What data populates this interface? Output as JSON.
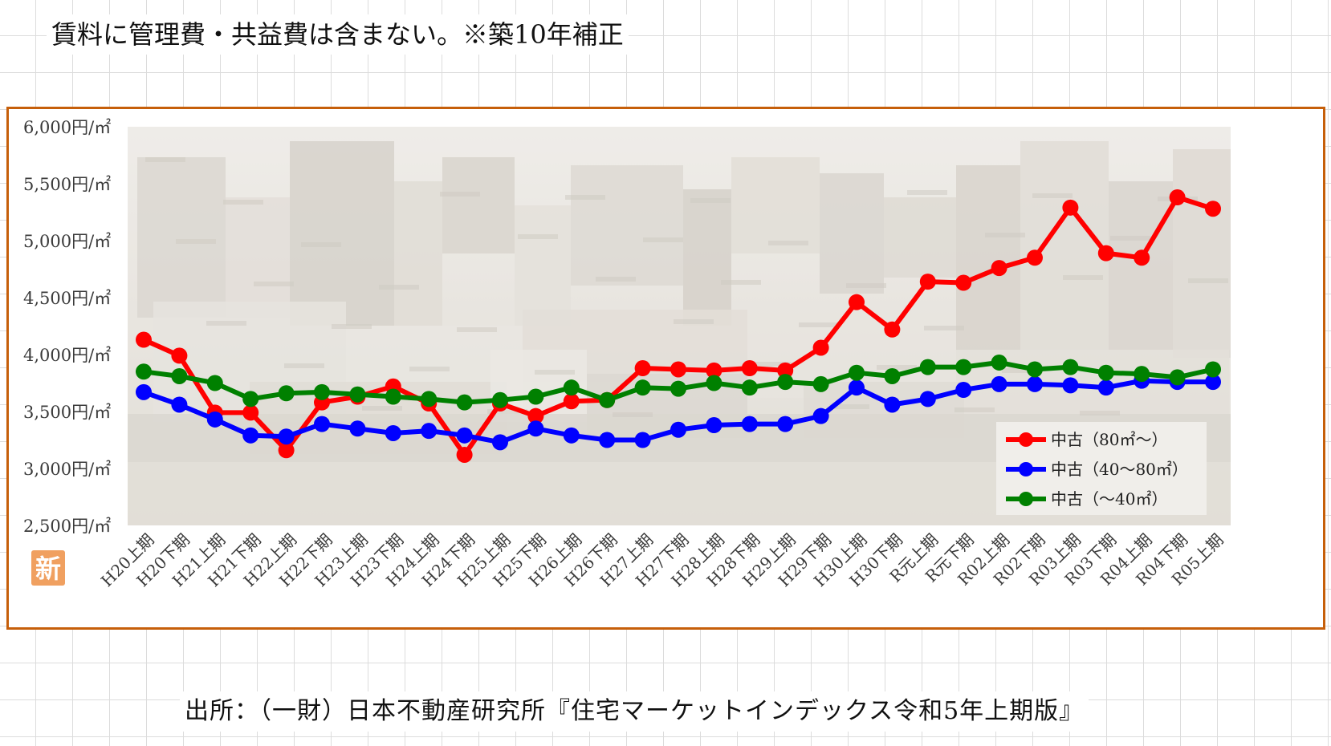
{
  "header": {
    "note": "賃料に管理費・共益費は含まない。※築10年補正"
  },
  "footer": {
    "source": "出所：（一財）日本不動産研究所『住宅マーケットインデックス令和5年上期版』"
  },
  "badge": {
    "label": "新",
    "color": "#f0a060"
  },
  "chart_data": {
    "type": "line",
    "title": "",
    "xlabel": "",
    "ylabel": "",
    "ylim": [
      2500,
      6000
    ],
    "y_ticks": [
      {
        "value": 6000,
        "label": "6,000円/㎡"
      },
      {
        "value": 5500,
        "label": "5,500円/㎡"
      },
      {
        "value": 5000,
        "label": "5,000円/㎡"
      },
      {
        "value": 4500,
        "label": "4,500円/㎡"
      },
      {
        "value": 4000,
        "label": "4,000円/㎡"
      },
      {
        "value": 3500,
        "label": "3,500円/㎡"
      },
      {
        "value": 3000,
        "label": "3,000円/㎡"
      },
      {
        "value": 2500,
        "label": "2,500円/㎡"
      }
    ],
    "grid": false,
    "background": "faded city photograph",
    "legend_position": "bottom-right",
    "categories": [
      "H20上期",
      "H20下期",
      "H21上期",
      "H21下期",
      "H22上期",
      "H22下期",
      "H23上期",
      "H23下期",
      "H24上期",
      "H24下期",
      "H25上期",
      "H25下期",
      "H26上期",
      "H26下期",
      "H27上期",
      "H27下期",
      "H28上期",
      "H28下期",
      "H29上期",
      "H29下期",
      "H30上期",
      "H30下期",
      "R元上期",
      "R元下期",
      "R02上期",
      "R02下期",
      "R03上期",
      "R03下期",
      "R04上期",
      "R04下期",
      "R05上期"
    ],
    "series": [
      {
        "name": "中古（80㎡～）",
        "color": "#ff0000",
        "values": [
          4130,
          3990,
          3490,
          3490,
          3160,
          3580,
          3630,
          3720,
          3570,
          3120,
          3570,
          3460,
          3590,
          3600,
          3880,
          3870,
          3860,
          3880,
          3860,
          4060,
          4460,
          4220,
          4640,
          4630,
          4760,
          4850,
          5290,
          4890,
          4850,
          5380,
          5280
        ]
      },
      {
        "name": "中古（40～80㎡）",
        "color": "#0000ff",
        "values": [
          3670,
          3560,
          3430,
          3290,
          3280,
          3390,
          3350,
          3310,
          3330,
          3290,
          3230,
          3350,
          3290,
          3250,
          3250,
          3340,
          3380,
          3390,
          3390,
          3460,
          3710,
          3560,
          3610,
          3690,
          3740,
          3740,
          3730,
          3710,
          3770,
          3760,
          3760
        ]
      },
      {
        "name": "中古（～40㎡）",
        "color": "#008000",
        "values": [
          3850,
          3810,
          3750,
          3610,
          3660,
          3670,
          3650,
          3630,
          3610,
          3580,
          3600,
          3630,
          3710,
          3600,
          3710,
          3700,
          3750,
          3710,
          3760,
          3740,
          3840,
          3810,
          3890,
          3890,
          3930,
          3870,
          3890,
          3840,
          3830,
          3800,
          3870
        ]
      }
    ]
  }
}
